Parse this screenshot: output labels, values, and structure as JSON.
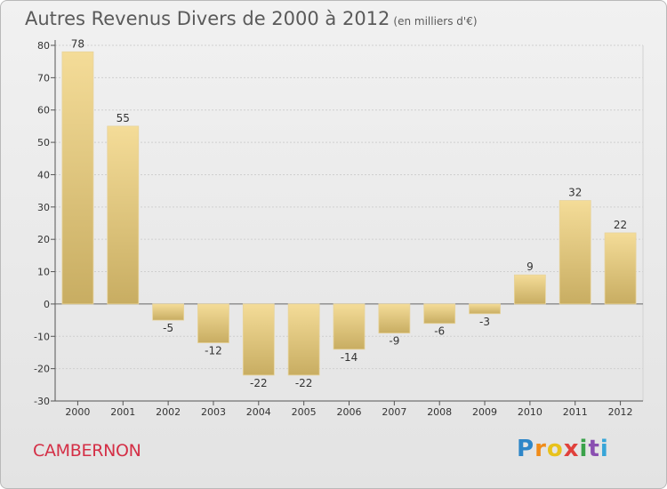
{
  "header": {
    "title": "Autres Revenus Divers de 2000 à 2012",
    "unit": "(en milliers d'€)"
  },
  "footer": {
    "commune": "CAMBERNON",
    "logo": "Proxiti"
  },
  "colors": {
    "bar_light": "#f4dc98",
    "bar_dark": "#c8ad62",
    "grid": "#cfcfcf",
    "commune": "#d42f46"
  },
  "chart_data": {
    "type": "bar",
    "title": "Autres Revenus Divers de 2000 à 2012",
    "subtitle": "(en milliers d'€)",
    "categories": [
      "2000",
      "2001",
      "2002",
      "2003",
      "2004",
      "2005",
      "2006",
      "2007",
      "2008",
      "2009",
      "2010",
      "2011",
      "2012"
    ],
    "values": [
      78,
      55,
      -5,
      -12,
      -22,
      -22,
      -14,
      -9,
      -6,
      -3,
      9,
      32,
      22
    ],
    "ylim": [
      -30,
      80
    ],
    "yticks": [
      -30,
      -20,
      -10,
      0,
      10,
      20,
      30,
      40,
      50,
      60,
      70,
      80
    ],
    "grid": "dashed horizontal",
    "legend": "none"
  }
}
